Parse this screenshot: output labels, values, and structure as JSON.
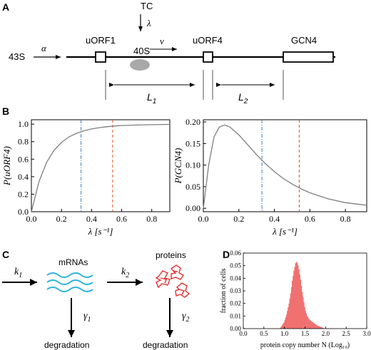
{
  "panels": {
    "a": "A",
    "b": "B",
    "c": "C",
    "d": "D"
  },
  "schematic": {
    "tc": "TC",
    "lambda_symbol": "λ",
    "alpha_symbol": "α",
    "s43": "43S",
    "uorf1": "uORF1",
    "s40": "40S",
    "v_symbol": "v",
    "uorf4": "uORF4",
    "gcn4": "GCN4",
    "l1": "L",
    "l1_sub": "1",
    "l2": "L",
    "l2_sub": "2"
  },
  "reaction": {
    "k1": "k",
    "k1_sub": "1",
    "k2": "k",
    "k2_sub": "2",
    "mrnas": "mRNAs",
    "proteins": "proteins",
    "gamma1": "γ",
    "gamma1_sub": "1",
    "gamma2": "γ",
    "gamma2_sub": "2",
    "degradation1": "degradation",
    "degradation2": "degradation"
  },
  "colors": {
    "curve": "#7f7f7f",
    "blue_marker": "#3b7fc4",
    "red_marker": "#d9541e",
    "wave": "#2bb3d9",
    "protein": "#e03030",
    "histogram": "#f07070",
    "ribosome": "#a9a9a9"
  },
  "chart_data": [
    {
      "type": "line",
      "ylabel": "P(uORF4)",
      "xlabel": "λ [s⁻¹]",
      "xlim": [
        0,
        0.92
      ],
      "ylim": [
        0,
        1.05
      ],
      "x_ticks": [
        "0.0",
        "0.2",
        "0.4",
        "0.6",
        "0.8"
      ],
      "y_ticks": [
        "0.0",
        "0.2",
        "0.4",
        "0.6",
        "0.8",
        "1.0"
      ],
      "series": [
        {
          "x": [
            0,
            0.05,
            0.1,
            0.15,
            0.2,
            0.25,
            0.3,
            0.35,
            0.4,
            0.45,
            0.5,
            0.55,
            0.6,
            0.7,
            0.8,
            0.92
          ],
          "y": [
            0,
            0.34,
            0.56,
            0.7,
            0.79,
            0.855,
            0.895,
            0.925,
            0.945,
            0.96,
            0.97,
            0.978,
            0.984,
            0.99,
            0.994,
            0.997
          ]
        }
      ],
      "markers": [
        {
          "x": 0.33,
          "style": "dashdot",
          "color": "blue"
        },
        {
          "x": 0.54,
          "style": "dashed",
          "color": "red"
        }
      ]
    },
    {
      "type": "line",
      "ylabel": "P(GCN4)",
      "xlabel": "λ [s⁻¹]",
      "xlim": [
        0,
        0.92
      ],
      "ylim": [
        -0.008,
        0.205
      ],
      "x_ticks": [
        "0.0",
        "0.2",
        "0.4",
        "0.6",
        "0.8"
      ],
      "y_ticks": [
        "0.00",
        "0.05",
        "0.10",
        "0.15",
        "0.20"
      ],
      "series": [
        {
          "x": [
            0,
            0.03,
            0.06,
            0.09,
            0.12,
            0.15,
            0.2,
            0.25,
            0.3,
            0.35,
            0.4,
            0.45,
            0.5,
            0.55,
            0.6,
            0.7,
            0.8,
            0.92
          ],
          "y": [
            0,
            0.1,
            0.165,
            0.188,
            0.193,
            0.188,
            0.17,
            0.147,
            0.124,
            0.103,
            0.085,
            0.069,
            0.056,
            0.045,
            0.036,
            0.022,
            0.013,
            0.007
          ]
        }
      ],
      "markers": [
        {
          "x": 0.33,
          "style": "dashdot",
          "color": "blue"
        },
        {
          "x": 0.54,
          "style": "dashed",
          "color": "red"
        }
      ]
    },
    {
      "type": "histogram",
      "ylabel": "fraction of cells",
      "xlabel": "protein copy number N (Log₁₀)",
      "xlim": [
        0,
        3.0
      ],
      "ylim": [
        0,
        0.06
      ],
      "x_ticks": [
        "0.0",
        "0.5",
        "1.0",
        "1.5",
        "2.0",
        "2.5",
        "3.0"
      ],
      "y_ticks": [
        "0.00",
        "0.01",
        "0.02",
        "0.03",
        "0.04",
        "0.05",
        "0.06"
      ],
      "bin_width": 0.02,
      "bins_x": [
        0.9,
        0.92,
        0.94,
        0.96,
        0.98,
        1.0,
        1.02,
        1.04,
        1.06,
        1.08,
        1.1,
        1.12,
        1.14,
        1.16,
        1.18,
        1.2,
        1.22,
        1.24,
        1.26,
        1.28,
        1.3,
        1.32,
        1.34,
        1.36,
        1.38,
        1.4,
        1.42,
        1.44,
        1.46,
        1.48,
        1.5,
        1.52,
        1.54,
        1.56,
        1.58,
        1.6,
        1.62,
        1.64,
        1.66,
        1.68,
        1.7,
        1.72,
        1.74,
        1.76,
        1.78,
        1.8,
        1.82,
        1.84,
        1.86,
        1.88,
        1.9,
        1.92,
        1.94
      ],
      "bins_y": [
        0.001,
        0.002,
        0.003,
        0.004,
        0.005,
        0.007,
        0.009,
        0.011,
        0.014,
        0.017,
        0.02,
        0.024,
        0.028,
        0.033,
        0.038,
        0.042,
        0.046,
        0.049,
        0.052,
        0.053,
        0.052,
        0.05,
        0.047,
        0.043,
        0.039,
        0.034,
        0.029,
        0.025,
        0.021,
        0.017,
        0.014,
        0.012,
        0.01,
        0.009,
        0.008,
        0.007,
        0.0065,
        0.006,
        0.0055,
        0.005,
        0.0045,
        0.004,
        0.0035,
        0.003,
        0.0025,
        0.0022,
        0.002,
        0.0017,
        0.0015,
        0.0012,
        0.001,
        0.0007,
        0.0004
      ]
    }
  ]
}
